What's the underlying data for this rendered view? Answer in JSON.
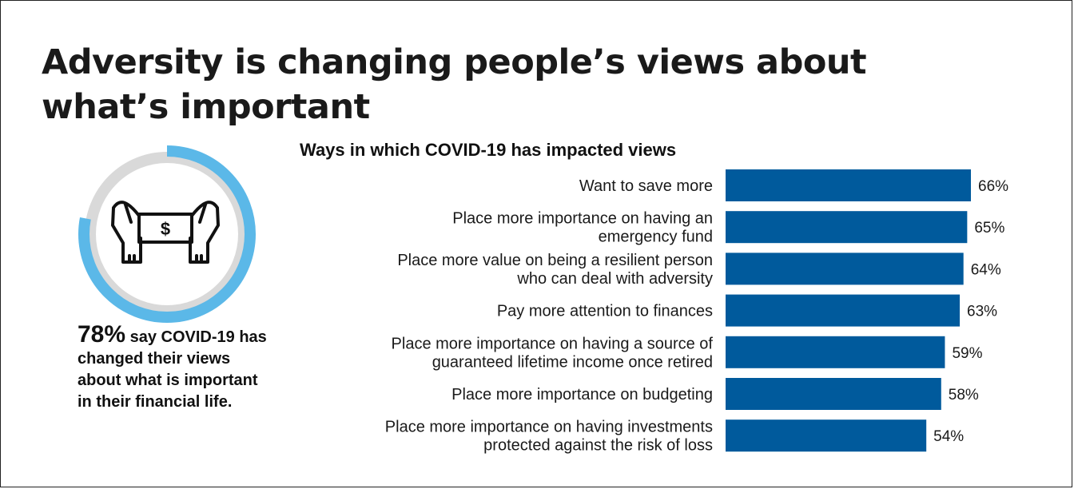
{
  "title": {
    "line1": "Adversity is changing people’s views about",
    "line2": "what’s important"
  },
  "stat": {
    "value": "78%",
    "text": "say COVID-19 has changed their views about what is important in their financial life.",
    "fraction": 0.78,
    "icon": "hands-holding-dollar-icon",
    "ring_color": "#5bb8e8",
    "track_color": "#d9d9d9"
  },
  "chart_data": {
    "type": "bar",
    "orientation": "horizontal",
    "title": "Ways in which COVID-19 has impacted views",
    "categories": [
      [
        "Want to save more"
      ],
      [
        "Place more importance on having an",
        "emergency fund"
      ],
      [
        "Place more value on being a resilient person",
        "who can deal with adversity"
      ],
      [
        "Pay more attention to finances"
      ],
      [
        "Place more importance on having a source of",
        "guaranteed lifetime income once retired"
      ],
      [
        "Place more importance on budgeting"
      ],
      [
        "Place more importance on having investments",
        "protected against the risk of loss"
      ]
    ],
    "values": [
      66,
      65,
      64,
      63,
      59,
      58,
      54
    ],
    "value_labels": [
      "66%",
      "65%",
      "64%",
      "63%",
      "59%",
      "58%",
      "54%"
    ],
    "xlim": [
      0,
      100
    ],
    "bar_color": "#005a9c",
    "grid": false,
    "legend": "none"
  }
}
